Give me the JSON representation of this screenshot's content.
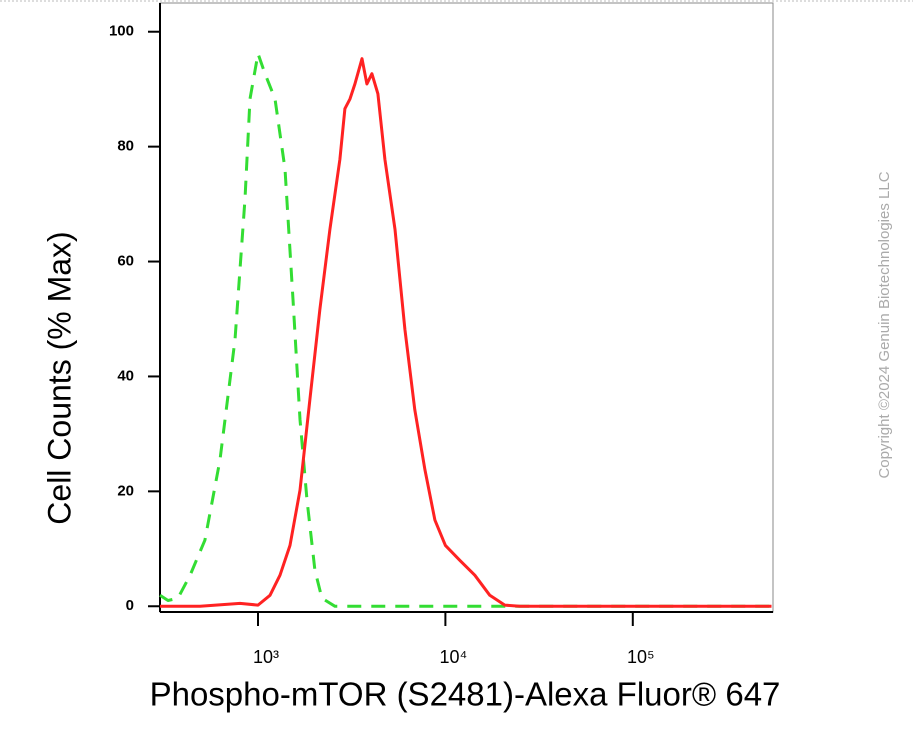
{
  "chart_data": {
    "type": "line",
    "ylabel": "Cell Counts (% Max)",
    "xlabel": "Phospho-mTOR (S2481)-Alexa Fluor® 647",
    "watermark": "Copyright ©2024 Genuin Biotechnologies LLC",
    "xscale": "log",
    "xlim": [
      300,
      560000
    ],
    "xticks": [
      {
        "value": 1000,
        "label": "10³"
      },
      {
        "value": 10000,
        "label": "10⁴"
      },
      {
        "value": 100000,
        "label": "10⁵"
      }
    ],
    "ylim": [
      -1,
      105
    ],
    "yticks": [
      0,
      20,
      40,
      60,
      80,
      100
    ],
    "series": [
      {
        "color": "#33dd33",
        "linestyle": "dashed",
        "x": [
          300,
          331,
          374,
          434,
          521,
          627,
          754,
          853,
          906,
          1000,
          1090,
          1233,
          1393,
          1538,
          1676,
          1826,
          2013,
          2193,
          2575,
          5710,
          550000
        ],
        "values": [
          1.9,
          1.0,
          1.4,
          5.4,
          11.5,
          25.5,
          46.4,
          70.9,
          88.3,
          96.2,
          92.7,
          88.3,
          76.1,
          53.4,
          32.5,
          18.5,
          6.3,
          1.4,
          0,
          0,
          0
        ]
      },
      {
        "color": "#ff2222",
        "linestyle": "solid",
        "x": [
          300,
          491,
          802,
          1000,
          1159,
          1310,
          1482,
          1676,
          1893,
          2141,
          2421,
          2737,
          2911,
          3096,
          3289,
          3589,
          3811,
          4055,
          4365,
          4753,
          5382,
          6081,
          6871,
          7780,
          8790,
          10000,
          11940,
          14360,
          17260,
          20750,
          24950,
          550000
        ],
        "values": [
          0,
          0,
          0.5,
          0.2,
          1.9,
          5.4,
          10.6,
          20.2,
          36.0,
          51.7,
          65.6,
          77.8,
          86.6,
          88.3,
          90.9,
          95.3,
          90.9,
          92.7,
          89.2,
          77.8,
          65.6,
          48.2,
          34.2,
          23.7,
          15.0,
          10.6,
          8.0,
          5.4,
          1.9,
          0.2,
          0,
          0
        ]
      }
    ]
  }
}
